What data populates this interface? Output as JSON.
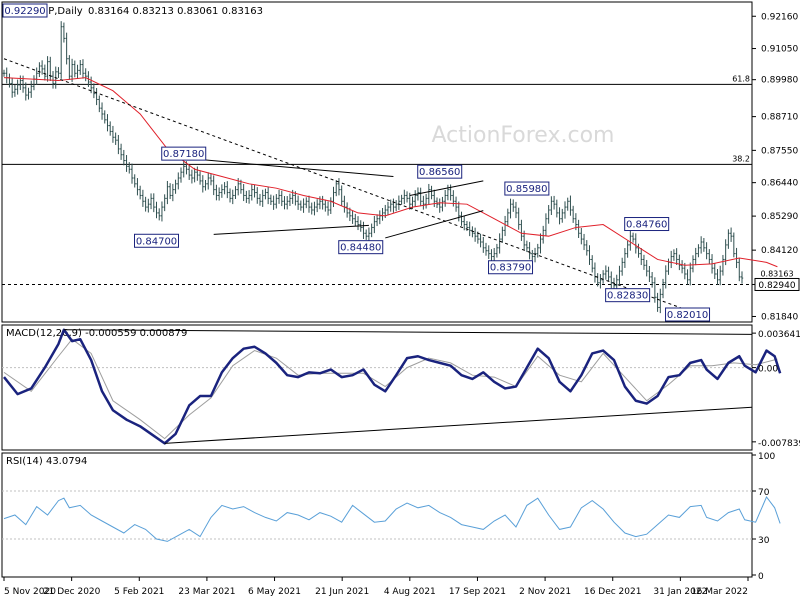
{
  "header": {
    "symbol_label": "EURGBP,Daily",
    "ohlc": "0.83164 0.83213 0.83061 0.83163"
  },
  "watermark": "ActionForex.com",
  "colors": {
    "price_bar": "#2f4f4f",
    "sma": "#e0202a",
    "macd_line": "#1a237e",
    "macd_signal": "#9e9e9e",
    "rsi_line": "#5aa0d8",
    "trendline": "#000000",
    "axis": "#000000",
    "box_border": "#1a237e",
    "label_text": "#1a237e",
    "watermark": "#d9d9d9"
  },
  "chart_data": [
    {
      "type": "line",
      "name": "price",
      "y_ticks": [
        "0.92160",
        "0.91050",
        "0.89980",
        "0.88710",
        "0.87550",
        "0.86440",
        "0.85290",
        "0.84120",
        "0.82940",
        "0.81840"
      ],
      "ylim": [
        0.8165,
        0.9265
      ],
      "last_price": "0.83163",
      "current_price_label": "0.82940",
      "fib_levels": [
        {
          "label": "61.8",
          "value": 0.8982
        },
        {
          "label": "38.2",
          "value": 0.8707
        }
      ],
      "support_dashed": 0.8294,
      "callouts": [
        {
          "text": "0.92290",
          "x": 6,
          "y": 0.9229
        },
        {
          "text": "0.87180",
          "x": 66,
          "y": 0.8718
        },
        {
          "text": "0.84700",
          "x": 56,
          "y": 0.847
        },
        {
          "text": "0.84480",
          "x": 131,
          "y": 0.8448
        },
        {
          "text": "0.86560",
          "x": 160,
          "y": 0.8656
        },
        {
          "text": "0.85980",
          "x": 192,
          "y": 0.8598
        },
        {
          "text": "0.83790",
          "x": 186,
          "y": 0.8379
        },
        {
          "text": "0.84760",
          "x": 236,
          "y": 0.8476
        },
        {
          "text": "0.82830",
          "x": 229,
          "y": 0.8283
        },
        {
          "text": "0.82010",
          "x": 251,
          "y": 0.8201
        }
      ],
      "trendlines": [
        {
          "x1": 0,
          "y1": 0.907,
          "x2": 249,
          "y2": 0.8212,
          "style": "dashed"
        },
        {
          "x1": 68,
          "y1": 0.8727,
          "x2": 143,
          "y2": 0.8665,
          "style": "solid"
        },
        {
          "x1": 77,
          "y1": 0.8466,
          "x2": 134,
          "y2": 0.8497,
          "style": "solid"
        },
        {
          "x1": 140,
          "y1": 0.8454,
          "x2": 176,
          "y2": 0.8548,
          "style": "solid"
        },
        {
          "x1": 149,
          "y1": 0.86,
          "x2": 176,
          "y2": 0.865,
          "style": "solid"
        }
      ],
      "close": [
        0.902,
        0.9005,
        0.8985,
        0.8955,
        0.8965,
        0.898,
        0.8995,
        0.897,
        0.8945,
        0.8955,
        0.8975,
        0.9,
        0.902,
        0.9045,
        0.9035,
        0.901,
        0.906,
        0.901,
        0.8985,
        0.9025,
        0.902,
        0.918,
        0.914,
        0.907,
        0.901,
        0.905,
        0.902,
        0.903,
        0.905,
        0.902,
        0.901,
        0.899,
        0.897,
        0.895,
        0.893,
        0.89,
        0.888,
        0.886,
        0.884,
        0.882,
        0.88,
        0.879,
        0.876,
        0.874,
        0.872,
        0.87,
        0.869,
        0.866,
        0.864,
        0.862,
        0.86,
        0.858,
        0.856,
        0.857,
        0.859,
        0.856,
        0.854,
        0.853,
        0.856,
        0.859,
        0.863,
        0.86,
        0.862,
        0.864,
        0.866,
        0.868,
        0.87,
        0.869,
        0.867,
        0.866,
        0.868,
        0.867,
        0.865,
        0.863,
        0.864,
        0.866,
        0.865,
        0.862,
        0.86,
        0.861,
        0.862,
        0.863,
        0.861,
        0.859,
        0.86,
        0.862,
        0.864,
        0.862,
        0.86,
        0.859,
        0.86,
        0.862,
        0.861,
        0.859,
        0.858,
        0.86,
        0.861,
        0.859,
        0.858,
        0.857,
        0.859,
        0.86,
        0.858,
        0.857,
        0.858,
        0.859,
        0.86,
        0.858,
        0.857,
        0.856,
        0.857,
        0.858,
        0.856,
        0.855,
        0.856,
        0.857,
        0.858,
        0.857,
        0.856,
        0.855,
        0.858,
        0.861,
        0.864,
        0.862,
        0.858,
        0.856,
        0.854,
        0.853,
        0.852,
        0.851,
        0.85,
        0.849,
        0.847,
        0.846,
        0.847,
        0.849,
        0.851,
        0.852,
        0.853,
        0.854,
        0.855,
        0.856,
        0.857,
        0.856,
        0.857,
        0.858,
        0.859,
        0.86,
        0.859,
        0.857,
        0.858,
        0.86,
        0.861,
        0.858,
        0.857,
        0.859,
        0.862,
        0.86,
        0.858,
        0.857,
        0.856,
        0.858,
        0.86,
        0.862,
        0.86,
        0.858,
        0.856,
        0.853,
        0.851,
        0.85,
        0.849,
        0.848,
        0.847,
        0.846,
        0.845,
        0.844,
        0.842,
        0.841,
        0.84,
        0.839,
        0.84,
        0.842,
        0.845,
        0.848,
        0.851,
        0.854,
        0.857,
        0.856,
        0.854,
        0.85,
        0.846,
        0.843,
        0.842,
        0.84,
        0.839,
        0.84,
        0.842,
        0.845,
        0.848,
        0.852,
        0.855,
        0.858,
        0.857,
        0.854,
        0.852,
        0.854,
        0.856,
        0.858,
        0.855,
        0.852,
        0.85,
        0.847,
        0.845,
        0.843,
        0.841,
        0.838,
        0.835,
        0.832,
        0.83,
        0.831,
        0.833,
        0.834,
        0.832,
        0.83,
        0.829,
        0.831,
        0.834,
        0.837,
        0.84,
        0.843,
        0.846,
        0.845,
        0.842,
        0.84,
        0.838,
        0.836,
        0.834,
        0.832,
        0.83,
        0.825,
        0.8215,
        0.826,
        0.83,
        0.834,
        0.837,
        0.839,
        0.84,
        0.838,
        0.836,
        0.835,
        0.833,
        0.831,
        0.835,
        0.838,
        0.84,
        0.842,
        0.844,
        0.842,
        0.84,
        0.838,
        0.835,
        0.833,
        0.831,
        0.834,
        0.838,
        0.843,
        0.847,
        0.846,
        0.84,
        0.837,
        0.832,
        0.8316
      ],
      "sma": [
        [
          0,
          0.9005
        ],
        [
          20,
          0.8995
        ],
        [
          30,
          0.9005
        ],
        [
          40,
          0.896
        ],
        [
          50,
          0.888
        ],
        [
          60,
          0.876
        ],
        [
          70,
          0.869
        ],
        [
          80,
          0.8665
        ],
        [
          90,
          0.864
        ],
        [
          100,
          0.8625
        ],
        [
          110,
          0.86
        ],
        [
          120,
          0.858
        ],
        [
          130,
          0.854
        ],
        [
          140,
          0.853
        ],
        [
          150,
          0.856
        ],
        [
          160,
          0.8575
        ],
        [
          170,
          0.857
        ],
        [
          180,
          0.852
        ],
        [
          190,
          0.847
        ],
        [
          200,
          0.846
        ],
        [
          210,
          0.849
        ],
        [
          220,
          0.85
        ],
        [
          230,
          0.844
        ],
        [
          240,
          0.838
        ],
        [
          250,
          0.836
        ],
        [
          260,
          0.8365
        ],
        [
          270,
          0.8385
        ],
        [
          280,
          0.837
        ],
        [
          284,
          0.8355
        ]
      ]
    },
    {
      "type": "line",
      "name": "MACD(12,26,9)",
      "label": "MACD(12,26,9) -0.000559 0.000879",
      "y_ticks": [
        "0.003641",
        "0.00",
        "-0.007839"
      ],
      "ylim": [
        -0.0087,
        0.0045
      ],
      "macd": [
        [
          0,
          -0.001
        ],
        [
          5,
          -0.0028
        ],
        [
          10,
          -0.0022
        ],
        [
          15,
          0.0
        ],
        [
          20,
          0.0025
        ],
        [
          22,
          0.004
        ],
        [
          25,
          0.0028
        ],
        [
          28,
          0.003
        ],
        [
          32,
          0.0008
        ],
        [
          36,
          -0.0025
        ],
        [
          40,
          -0.0045
        ],
        [
          45,
          -0.0055
        ],
        [
          50,
          -0.0062
        ],
        [
          55,
          -0.0072
        ],
        [
          59,
          -0.008
        ],
        [
          63,
          -0.007
        ],
        [
          68,
          -0.004
        ],
        [
          72,
          -0.003
        ],
        [
          76,
          -0.003
        ],
        [
          80,
          -0.0005
        ],
        [
          84,
          0.001
        ],
        [
          88,
          0.002
        ],
        [
          92,
          0.0022
        ],
        [
          96,
          0.0015
        ],
        [
          100,
          0.0005
        ],
        [
          104,
          -0.0008
        ],
        [
          108,
          -0.001
        ],
        [
          112,
          -0.0005
        ],
        [
          116,
          -0.0006
        ],
        [
          120,
          -0.0002
        ],
        [
          124,
          -0.001
        ],
        [
          128,
          -0.0008
        ],
        [
          132,
          -0.0002
        ],
        [
          136,
          -0.0018
        ],
        [
          140,
          -0.0025
        ],
        [
          144,
          -0.0008
        ],
        [
          148,
          0.001
        ],
        [
          152,
          0.0012
        ],
        [
          156,
          0.0008
        ],
        [
          160,
          0.0005
        ],
        [
          164,
          0.0002
        ],
        [
          168,
          -0.0008
        ],
        [
          172,
          -0.0012
        ],
        [
          176,
          -0.0005
        ],
        [
          180,
          -0.0015
        ],
        [
          184,
          -0.0022
        ],
        [
          188,
          -0.002
        ],
        [
          192,
          0.0
        ],
        [
          196,
          0.002
        ],
        [
          200,
          0.001
        ],
        [
          204,
          -0.0015
        ],
        [
          208,
          -0.0025
        ],
        [
          212,
          -0.0008
        ],
        [
          216,
          0.0015
        ],
        [
          220,
          0.0018
        ],
        [
          224,
          0.0008
        ],
        [
          228,
          -0.002
        ],
        [
          232,
          -0.0035
        ],
        [
          236,
          -0.0038
        ],
        [
          240,
          -0.003
        ],
        [
          244,
          -0.001
        ],
        [
          248,
          -0.0008
        ],
        [
          252,
          0.0005
        ],
        [
          256,
          0.0008
        ],
        [
          258,
          -0.0002
        ],
        [
          262,
          -0.0012
        ],
        [
          266,
          0.0005
        ],
        [
          270,
          0.0012
        ],
        [
          272,
          0.0002
        ],
        [
          276,
          -0.0005
        ],
        [
          280,
          0.0018
        ],
        [
          283,
          0.0012
        ],
        [
          285,
          -0.0006
        ]
      ],
      "signal": [
        [
          0,
          -0.0005
        ],
        [
          10,
          -0.0025
        ],
        [
          20,
          0.0012
        ],
        [
          25,
          0.003
        ],
        [
          32,
          0.0015
        ],
        [
          40,
          -0.0035
        ],
        [
          50,
          -0.0055
        ],
        [
          59,
          -0.0075
        ],
        [
          68,
          -0.005
        ],
        [
          76,
          -0.0032
        ],
        [
          84,
          0.0002
        ],
        [
          92,
          0.0018
        ],
        [
          100,
          0.001
        ],
        [
          108,
          -0.0008
        ],
        [
          116,
          -0.0006
        ],
        [
          124,
          -0.0006
        ],
        [
          132,
          -0.0006
        ],
        [
          140,
          -0.002
        ],
        [
          148,
          0.0
        ],
        [
          156,
          0.001
        ],
        [
          164,
          0.0005
        ],
        [
          172,
          -0.0008
        ],
        [
          180,
          -0.001
        ],
        [
          188,
          -0.002
        ],
        [
          196,
          0.0012
        ],
        [
          204,
          -0.0008
        ],
        [
          212,
          -0.0015
        ],
        [
          220,
          0.0015
        ],
        [
          228,
          -0.001
        ],
        [
          236,
          -0.0035
        ],
        [
          244,
          -0.0018
        ],
        [
          252,
          0.0002
        ],
        [
          260,
          0.0002
        ],
        [
          268,
          0.0005
        ],
        [
          276,
          0.0003
        ],
        [
          284,
          0.0009
        ]
      ],
      "trendlines": [
        {
          "x1": 22,
          "y1": 0.004,
          "x2": 283,
          "y2": 0.0035
        },
        {
          "x1": 59,
          "y1": -0.008,
          "x2": 285,
          "y2": -0.004
        }
      ]
    },
    {
      "type": "line",
      "name": "RSI(14)",
      "label": "RSI(14) 43.0794",
      "y_ticks": [
        "100",
        "70",
        "30",
        "0"
      ],
      "ylim": [
        0,
        100
      ],
      "levels": [
        70,
        30
      ],
      "rsi": [
        [
          0,
          47
        ],
        [
          4,
          50
        ],
        [
          8,
          42
        ],
        [
          12,
          57
        ],
        [
          16,
          50
        ],
        [
          20,
          62
        ],
        [
          22,
          64
        ],
        [
          24,
          56
        ],
        [
          28,
          58
        ],
        [
          32,
          50
        ],
        [
          36,
          45
        ],
        [
          40,
          40
        ],
        [
          44,
          35
        ],
        [
          48,
          42
        ],
        [
          52,
          38
        ],
        [
          56,
          30
        ],
        [
          60,
          28
        ],
        [
          64,
          33
        ],
        [
          68,
          38
        ],
        [
          72,
          32
        ],
        [
          76,
          48
        ],
        [
          80,
          58
        ],
        [
          84,
          55
        ],
        [
          88,
          57
        ],
        [
          92,
          52
        ],
        [
          96,
          48
        ],
        [
          100,
          45
        ],
        [
          104,
          52
        ],
        [
          108,
          50
        ],
        [
          112,
          46
        ],
        [
          116,
          52
        ],
        [
          120,
          49
        ],
        [
          124,
          44
        ],
        [
          128,
          58
        ],
        [
          132,
          51
        ],
        [
          136,
          44
        ],
        [
          140,
          45
        ],
        [
          144,
          55
        ],
        [
          148,
          60
        ],
        [
          152,
          56
        ],
        [
          156,
          58
        ],
        [
          160,
          52
        ],
        [
          164,
          48
        ],
        [
          168,
          42
        ],
        [
          172,
          40
        ],
        [
          176,
          38
        ],
        [
          180,
          45
        ],
        [
          184,
          50
        ],
        [
          188,
          40
        ],
        [
          192,
          58
        ],
        [
          196,
          64
        ],
        [
          200,
          50
        ],
        [
          204,
          38
        ],
        [
          208,
          40
        ],
        [
          212,
          56
        ],
        [
          216,
          62
        ],
        [
          220,
          55
        ],
        [
          224,
          44
        ],
        [
          228,
          35
        ],
        [
          232,
          32
        ],
        [
          236,
          34
        ],
        [
          240,
          42
        ],
        [
          244,
          50
        ],
        [
          248,
          48
        ],
        [
          252,
          57
        ],
        [
          256,
          58
        ],
        [
          258,
          48
        ],
        [
          262,
          45
        ],
        [
          266,
          52
        ],
        [
          270,
          55
        ],
        [
          272,
          46
        ],
        [
          276,
          44
        ],
        [
          280,
          65
        ],
        [
          283,
          56
        ],
        [
          285,
          43
        ]
      ]
    }
  ],
  "x_axis_labels": [
    "5 Nov 2020",
    "21 Dec 2020",
    "5 Feb 2021",
    "23 Mar 2021",
    "6 May 2021",
    "21 Jun 2021",
    "4 Aug 2021",
    "17 Sep 2021",
    "2 Nov 2021",
    "16 Dec 2021",
    "31 Jan 2022",
    "16 Mar 2022"
  ]
}
